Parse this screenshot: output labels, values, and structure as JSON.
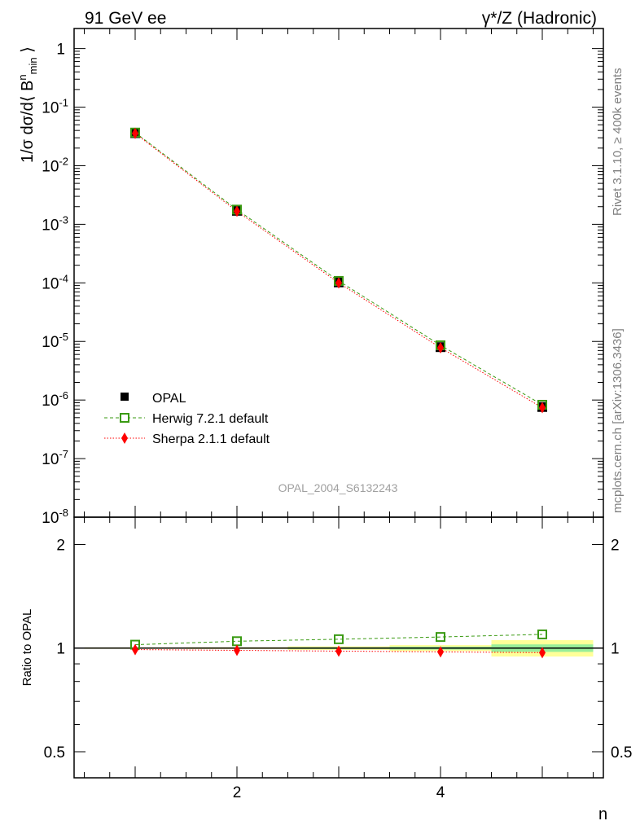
{
  "header": {
    "left": "91 GeV ee",
    "right": "γ*/Z (Hadronic)"
  },
  "side_labels": {
    "rivet": "Rivet 3.1.10, ≥ 400k events",
    "mcplots": "mcplots.cern.ch [arXiv:1306.3436]"
  },
  "colors": {
    "opal": "#000000",
    "herwig": "#3a9a12",
    "sherpa": "#ff0000",
    "band_inner": "#99ee99",
    "band_outer": "#ffff99"
  },
  "chart_data": [
    {
      "type": "line",
      "title": "",
      "ylabel": "1/σ dσ/d⟨ B^n_min ⟩",
      "xlabel": "n",
      "yscale": "log",
      "ylim": [
        1e-08,
        2.2
      ],
      "xlim": [
        0.4,
        5.6
      ],
      "ytick_labels": [
        "1",
        "10^-1",
        "10^-2",
        "10^-3",
        "10^-4",
        "10^-5",
        "10^-6",
        "10^-7",
        "10^-8"
      ],
      "watermark": "OPAL_2004_S6132243",
      "x": [
        1,
        2,
        3,
        4,
        5
      ],
      "series": [
        {
          "name": "OPAL",
          "values": [
            0.036,
            0.0017,
            0.000102,
            8e-06,
            7.6e-07
          ]
        },
        {
          "name": "Herwig 7.2.1 default",
          "values": [
            0.0368,
            0.00178,
            0.000108,
            8.6e-06,
            8.3e-07
          ]
        },
        {
          "name": "Sherpa 2.1.1 default",
          "values": [
            0.0356,
            0.00167,
            0.0001,
            7.8e-06,
            7.4e-07
          ]
        }
      ],
      "legend": "middle-left"
    },
    {
      "type": "line",
      "ylabel": "Ratio to OPAL",
      "xlabel": "n",
      "yscale": "log",
      "ylim": [
        0.42,
        2.4
      ],
      "xlim": [
        0.4,
        5.6
      ],
      "ytick_labels": [
        "2",
        "1",
        "0.5"
      ],
      "xtick_labels": [
        "2",
        "4"
      ],
      "x": [
        1,
        2,
        3,
        4,
        5
      ],
      "band_inner": [
        0.004,
        0.004,
        0.006,
        0.01,
        0.025
      ],
      "band_outer": [
        0.005,
        0.006,
        0.012,
        0.02,
        0.055
      ],
      "series": [
        {
          "name": "Herwig 7.2.1 default",
          "values": [
            1.023,
            1.047,
            1.061,
            1.077,
            1.096
          ]
        },
        {
          "name": "Sherpa 2.1.1 default",
          "values": [
            0.99,
            0.985,
            0.98,
            0.975,
            0.97
          ]
        }
      ]
    }
  ]
}
